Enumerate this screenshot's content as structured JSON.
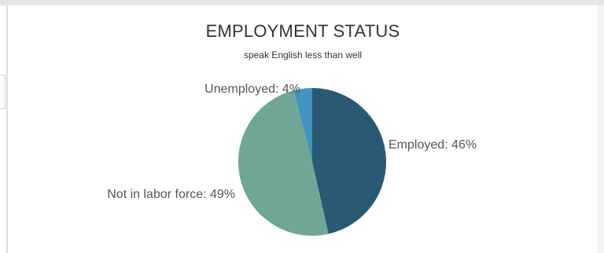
{
  "chart_data": {
    "type": "pie",
    "title": "EMPLOYMENT STATUS",
    "subtitle": "speak English less than well",
    "slices": [
      {
        "label": "Employed",
        "value": 46,
        "display": "Employed: 46%",
        "color": "#2a5a73"
      },
      {
        "label": "Not in labor force",
        "value": 49,
        "display": "Not in labor force: 49%",
        "color": "#6fa696"
      },
      {
        "label": "Unemployed",
        "value": 4,
        "display": "Unemployed: 4%",
        "color": "#4293bd"
      }
    ]
  }
}
